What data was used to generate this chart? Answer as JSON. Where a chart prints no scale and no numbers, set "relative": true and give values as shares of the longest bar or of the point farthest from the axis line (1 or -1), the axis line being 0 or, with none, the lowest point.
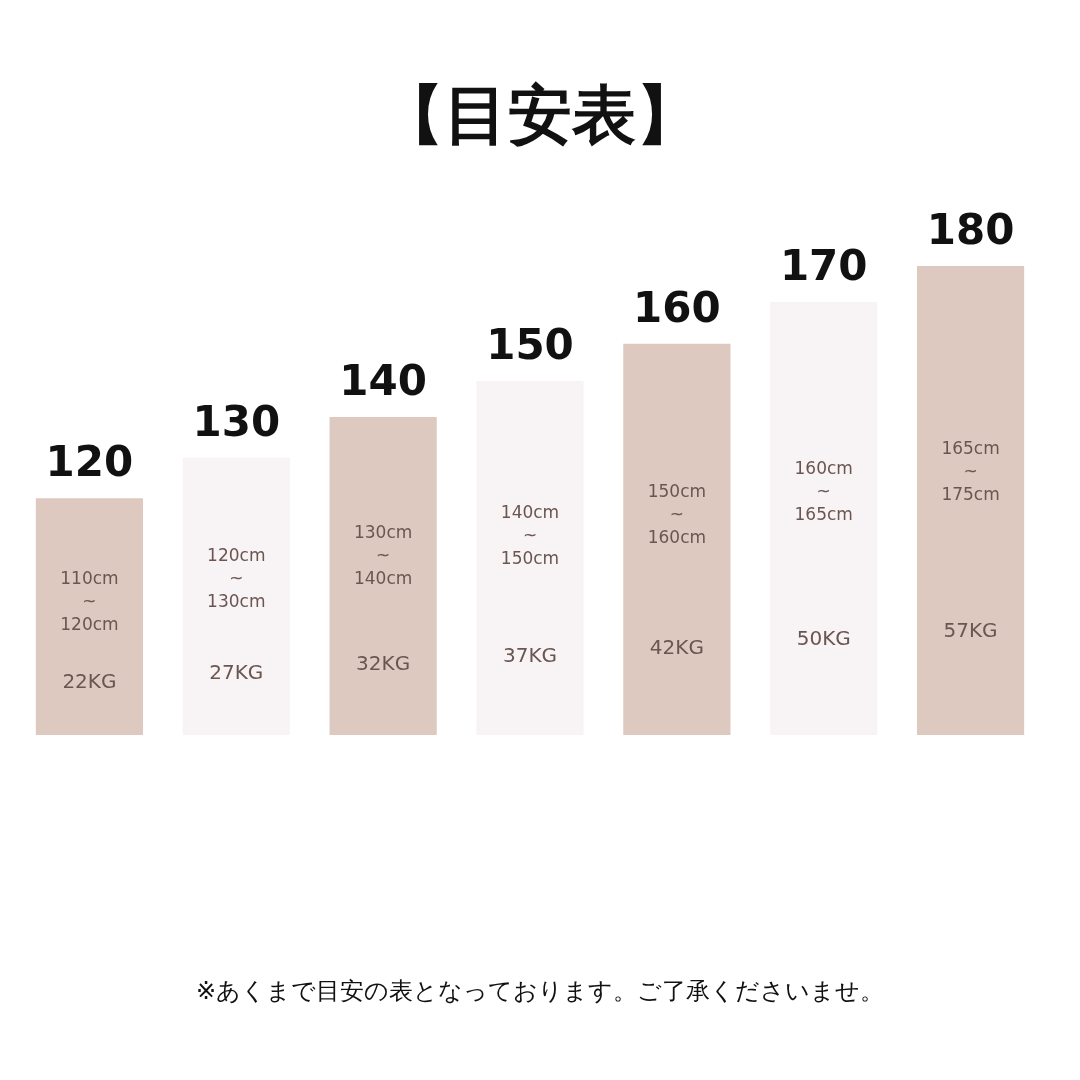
{
  "chart_data": {
    "type": "bar",
    "title": "【目安表】",
    "relative": true,
    "categories": [
      "120",
      "130",
      "140",
      "150",
      "160",
      "170",
      "180"
    ],
    "values": [
      0.505,
      0.591,
      0.678,
      0.755,
      0.834,
      0.923,
      1
    ],
    "colors": [
      "#ddc9c0",
      "#f8f4f5",
      "#ddc9c0",
      "#f8f4f5",
      "#ddc9c0",
      "#f8f4f5",
      "#ddc9c0"
    ],
    "legend": false,
    "annotations": [
      "110cm\n~\n120cm",
      "22KG",
      "120cm\n~\n130cm",
      "27KG",
      "130cm\n~\n140cm",
      "32KG",
      "140cm\n~\n150cm",
      "37KG",
      "150cm\n~\n160cm",
      "42KG",
      "160cm\n~\n165cm",
      "50KG",
      "165cm\n~\n175cm",
      "57KG",
      "※あくまで目安の表となっております。ご了承くださいませ。"
    ]
  }
}
